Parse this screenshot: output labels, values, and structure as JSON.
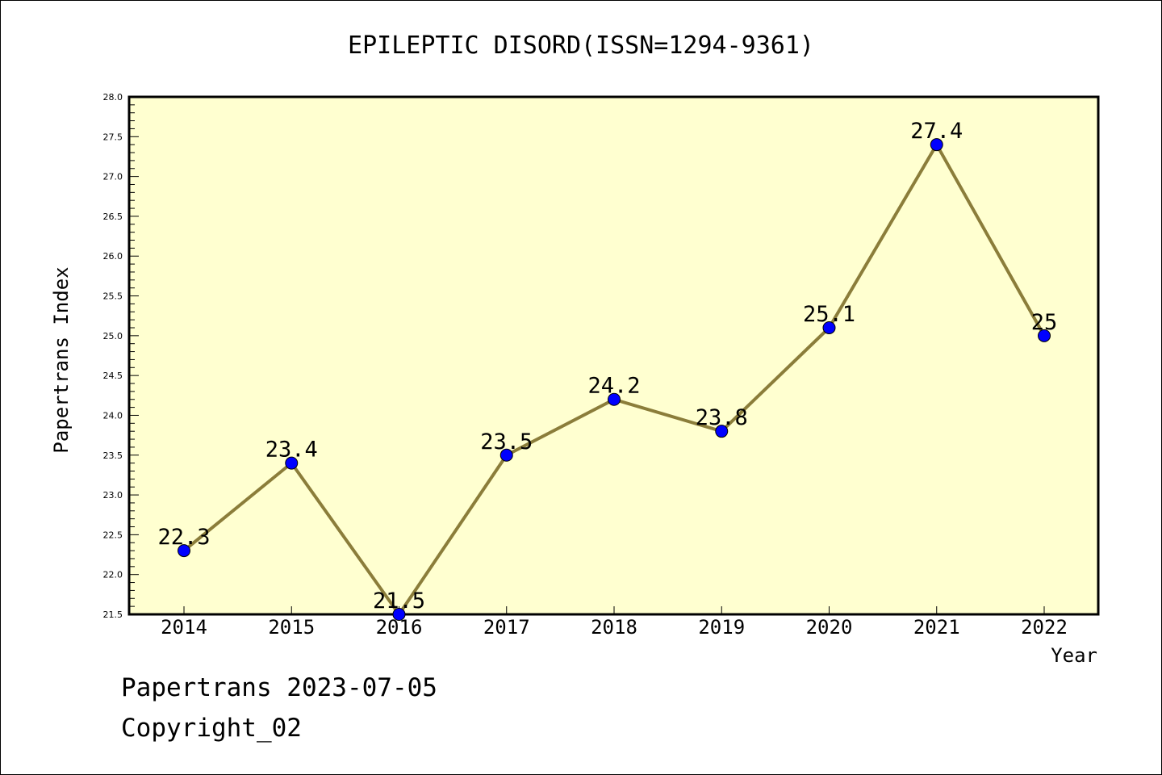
{
  "chart_data": {
    "type": "line",
    "title": "EPILEPTIC DISORD(ISSN=1294-9361)",
    "xlabel": "Year",
    "ylabel": "Papertrans Index",
    "categories": [
      "2014",
      "2015",
      "2016",
      "2017",
      "2018",
      "2019",
      "2020",
      "2021",
      "2022"
    ],
    "series": [
      {
        "values": [
          22.3,
          23.4,
          21.5,
          23.5,
          24.2,
          23.8,
          25.1,
          27.4,
          25
        ]
      }
    ],
    "data_labels": [
      "22.3",
      "23.4",
      "21.5",
      "23.5",
      "24.2",
      "23.8",
      "25.1",
      "27.4",
      "25"
    ],
    "ylim": [
      21.5,
      28.0
    ],
    "ytick_labels": [
      "21.5",
      "22.0",
      "22.5",
      "23.0",
      "23.5",
      "24.0",
      "24.5",
      "25.0",
      "25.5",
      "26.0",
      "26.5",
      "27.0",
      "27.5",
      "28.0"
    ],
    "grid": false,
    "legend": "none",
    "colors": {
      "plot_background": "#ffffd0",
      "line": "#8b7d3a",
      "marker": "#0000ff",
      "axis": "#000000"
    }
  },
  "footer": {
    "date": "Papertrans 2023-07-05",
    "copyright": "Copyright_02"
  }
}
